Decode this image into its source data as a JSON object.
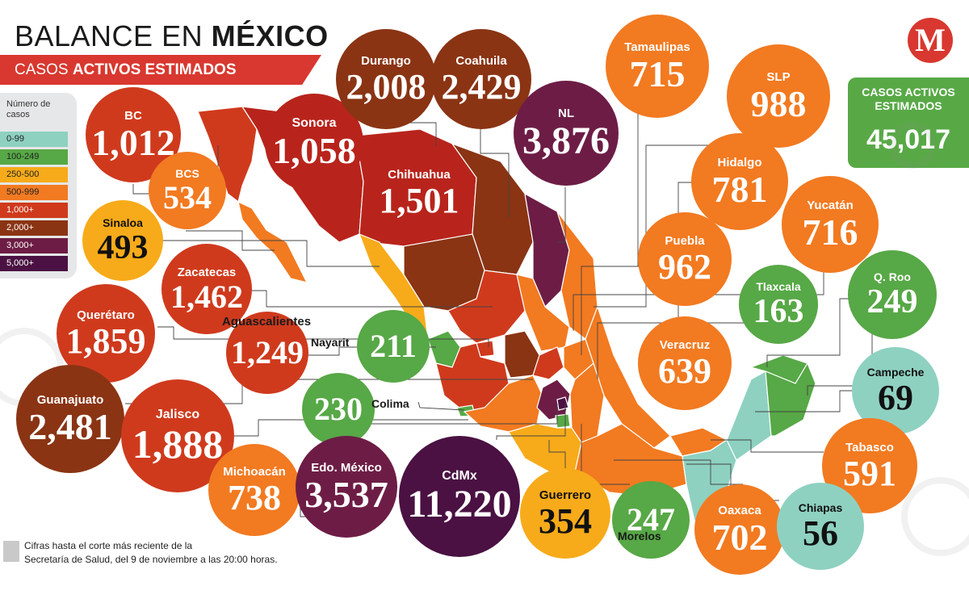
{
  "header": {
    "title_plain": "BALANCE EN ",
    "title_bold": "MÉXICO",
    "subtitle_plain": "CASOS ",
    "subtitle_bold": "ACTIVOS ESTIMADOS"
  },
  "brand": {
    "logo_letter": "M",
    "accent": "#d8382f"
  },
  "legend": {
    "title": "Número de casos",
    "items": [
      {
        "label": "0-99",
        "color": "#8ed1c1"
      },
      {
        "label": "100-249",
        "color": "#57a846"
      },
      {
        "label": "250-500",
        "color": "#f7ab1a"
      },
      {
        "label": "500-999",
        "color": "#f27a21"
      },
      {
        "label": "1,000+",
        "color": "#cf3a1d"
      },
      {
        "label": "2,000+",
        "color": "#8a3414"
      },
      {
        "label": "3,000+",
        "color": "#6d1d45"
      },
      {
        "label": "5,000+",
        "color": "#4a1142"
      }
    ]
  },
  "total": {
    "label": "CASOS ACTIVOS ESTIMADOS",
    "value": "45,017",
    "color": "#58a946"
  },
  "states": [
    {
      "name": "BC",
      "value": "1,012",
      "color": "#cf3a1d"
    },
    {
      "name": "Sonora",
      "value": "1,058",
      "color": "#b8241c"
    },
    {
      "name": "Durango",
      "value": "2,008",
      "color": "#8a3414"
    },
    {
      "name": "Coahuila",
      "value": "2,429",
      "color": "#8a3414"
    },
    {
      "name": "Tamaulipas",
      "value": "715",
      "color": "#f27a21"
    },
    {
      "name": "SLP",
      "value": "988",
      "color": "#f27a21"
    },
    {
      "name": "NL",
      "value": "3,876",
      "color": "#6d1d45"
    },
    {
      "name": "BCS",
      "value": "534",
      "color": "#f27a21"
    },
    {
      "name": "Chihuahua",
      "value": "1,501",
      "color": "#b8241c"
    },
    {
      "name": "Hidalgo",
      "value": "781",
      "color": "#f27a21"
    },
    {
      "name": "Yucatán",
      "value": "716",
      "color": "#f27a21"
    },
    {
      "name": "Sinaloa",
      "value": "493",
      "color": "#f7ab1a"
    },
    {
      "name": "Puebla",
      "value": "962",
      "color": "#f27a21"
    },
    {
      "name": "Zacatecas",
      "value": "1,462",
      "color": "#cf3a1d"
    },
    {
      "name": "Tlaxcala",
      "value": "163",
      "color": "#57a846"
    },
    {
      "name": "Q. Roo",
      "value": "249",
      "color": "#57a846"
    },
    {
      "name": "Querétaro",
      "value": "1,859",
      "color": "#cf3a1d"
    },
    {
      "name": "Aguascalientes",
      "value": "1,249",
      "color": "#cf3a1d"
    },
    {
      "name": "Nayarit",
      "value": "211",
      "color": "#57a846"
    },
    {
      "name": "Veracruz",
      "value": "639",
      "color": "#f27a21"
    },
    {
      "name": "Campeche",
      "value": "69",
      "color": "#8ed1c1"
    },
    {
      "name": "Guanajuato",
      "value": "2,481",
      "color": "#8a3414"
    },
    {
      "name": "Jalisco",
      "value": "1,888",
      "color": "#cf3a1d"
    },
    {
      "name": "Colima",
      "value": "230",
      "color": "#57a846"
    },
    {
      "name": "Tabasco",
      "value": "591",
      "color": "#f27a21"
    },
    {
      "name": "Michoacán",
      "value": "738",
      "color": "#f27a21"
    },
    {
      "name": "Edo. México",
      "value": "3,537",
      "color": "#6d1d45"
    },
    {
      "name": "CdMx",
      "value": "11,220",
      "color": "#4a1142"
    },
    {
      "name": "Guerrero",
      "value": "354",
      "color": "#f7ab1a"
    },
    {
      "name": "Morelos",
      "value": "247",
      "color": "#57a846"
    },
    {
      "name": "Oaxaca",
      "value": "702",
      "color": "#f27a21"
    },
    {
      "name": "Chiapas",
      "value": "56",
      "color": "#8ed1c1"
    }
  ],
  "footnote": {
    "line1": "Cifras hasta el corte más reciente de la",
    "line2": "Secretaría de Salud, del 9 de noviembre a las 20:00 horas."
  }
}
